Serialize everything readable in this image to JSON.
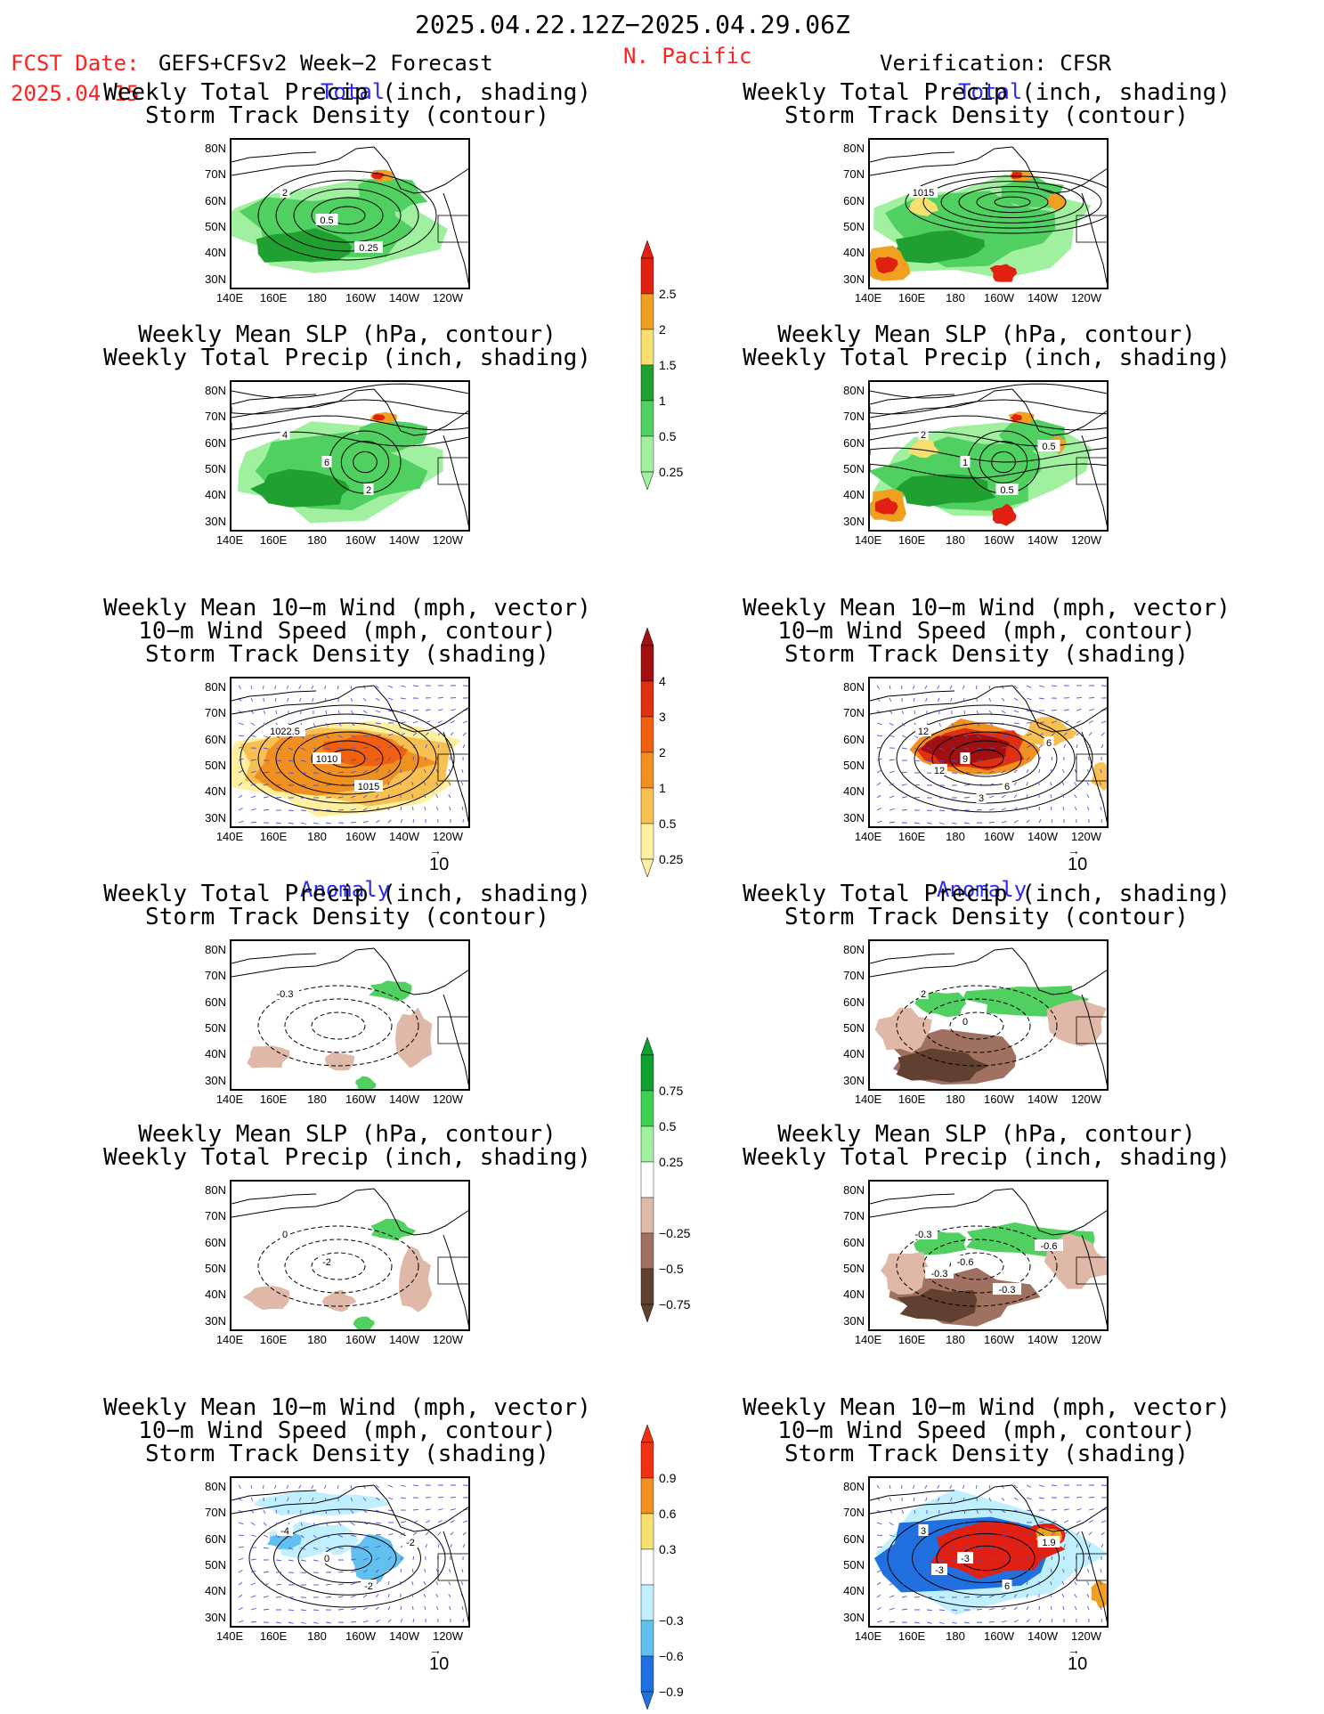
{
  "header": {
    "date_range": "2025.04.22.12Z−2025.04.29.06Z",
    "fcst_label": "FCST Date:",
    "fcst_model": "GEFS+CFSv2 Week−2 Forecast",
    "fcst_date": "2025.04.15",
    "region": "N. Pacific",
    "verification": "Verification: CFSR"
  },
  "section_labels": {
    "total": "Total",
    "anomaly": "Anomaly"
  },
  "panel_titles": {
    "precip_storm": [
      "Weekly Total Precip (inch, shading)",
      "Storm Track Density (contour)"
    ],
    "slp_precip": [
      "Weekly Mean SLP (hPa, contour)",
      "Weekly Total Precip (inch, shading)"
    ],
    "wind_storm": [
      "Weekly Mean 10−m Wind (mph, vector)",
      "10−m Wind Speed (mph, contour)",
      "Storm Track Density (shading)"
    ]
  },
  "axes": {
    "y_ticks": [
      "80N",
      "70N",
      "60N",
      "50N",
      "40N",
      "30N"
    ],
    "x_ticks": [
      "140E",
      "160E",
      "180",
      "160W",
      "140W",
      "120W"
    ]
  },
  "vector_ref": "10",
  "panels": [
    {
      "id": "fcst-total-precip",
      "contour_labels": [
        "2",
        "0.5",
        "0.25"
      ]
    },
    {
      "id": "fcst-total-slp",
      "contour_labels": [
        "1015"
      ]
    },
    {
      "id": "fcst-total-wind",
      "contour_labels": [
        "4",
        "6",
        "2"
      ]
    },
    {
      "id": "ver-total-precip",
      "contour_labels": [
        "2",
        "1",
        "0.5",
        "0.5"
      ]
    },
    {
      "id": "ver-total-slp",
      "contour_labels": [
        "1022.5",
        "1010",
        "1015"
      ]
    },
    {
      "id": "ver-total-wind",
      "contour_labels": [
        "12",
        "9",
        "6",
        "6",
        "12",
        "3"
      ]
    },
    {
      "id": "fcst-anom-precip",
      "contour_labels": [
        "-0.3"
      ]
    },
    {
      "id": "fcst-anom-slp",
      "contour_labels": [
        "2",
        "0"
      ]
    },
    {
      "id": "fcst-anom-wind",
      "contour_labels": [
        "0",
        "-2"
      ]
    },
    {
      "id": "ver-anom-precip",
      "contour_labels": [
        "-0.3",
        "-0.6",
        "-0.3",
        "-0.6",
        "-0.3"
      ]
    },
    {
      "id": "ver-anom-slp",
      "contour_labels": [
        "-4",
        "0",
        "-2",
        "-2"
      ]
    },
    {
      "id": "ver-anom-wind",
      "contour_labels": [
        "3",
        "-3",
        "6",
        "1.9",
        "-3"
      ]
    }
  ],
  "colorbars": {
    "precip_total": {
      "labels": [
        "2.5",
        "2",
        "1.5",
        "1",
        "0.5",
        "0.25"
      ],
      "colors": [
        "#e02010",
        "#f0a020",
        "#f8e070",
        "#20a030",
        "#50d060",
        "#a0f0a0"
      ]
    },
    "storm_total": {
      "labels": [
        "4",
        "3",
        "2",
        "1",
        "0.5",
        "0.25"
      ],
      "colors": [
        "#a01010",
        "#e03010",
        "#f06010",
        "#f09020",
        "#f8c050",
        "#fff0a0"
      ]
    },
    "precip_anom": {
      "labels": [
        "0.75",
        "0.5",
        "0.25",
        "−0.25",
        "−0.5",
        "−0.75"
      ],
      "colors": [
        "#10a030",
        "#40d050",
        "#a0f0a0",
        "#ffffff",
        "#e0b8a8",
        "#a07060",
        "#604030"
      ]
    },
    "storm_anom": {
      "labels": [
        "0.9",
        "0.6",
        "0.3",
        "−0.3",
        "−0.6",
        "−0.9"
      ],
      "colors": [
        "#f03010",
        "#f09020",
        "#f8e070",
        "#ffffff",
        "#c0f0ff",
        "#60c0f0",
        "#2070e0"
      ]
    }
  }
}
